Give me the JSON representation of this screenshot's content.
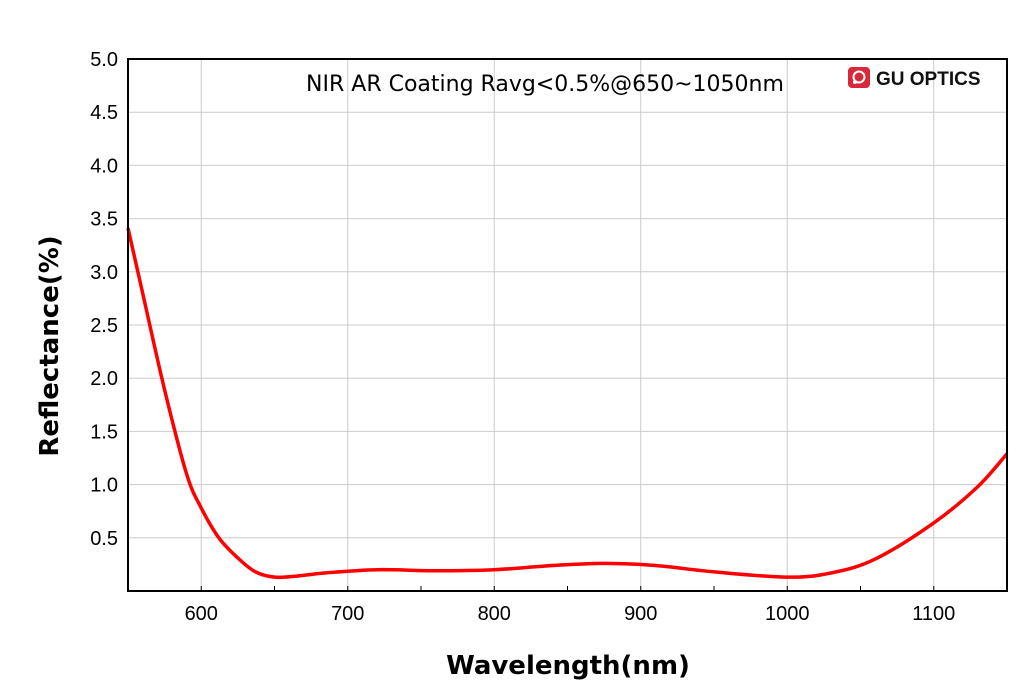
{
  "chart_data": {
    "type": "line",
    "title": "NIR AR Coating Ravg<0.5%@650~1050nm",
    "xlabel": "Wavelength(nm)",
    "ylabel": "Reflectance(%)",
    "xlim": [
      550,
      1150
    ],
    "ylim": [
      0,
      5.0
    ],
    "xticks": [
      "600",
      "700",
      "800",
      "900",
      "1000",
      "1100"
    ],
    "yticks": [
      "0.5",
      "1.0",
      "1.5",
      "2.0",
      "2.5",
      "3.0",
      "3.5",
      "4.0",
      "4.5",
      "5.0"
    ],
    "grid": true,
    "series": [
      {
        "name": "Reflectance",
        "color": "#ff0000",
        "x": [
          550,
          560,
          575,
          590,
          600,
          612,
          625,
          637,
          650,
          665,
          685,
          720,
          760,
          800,
          840,
          875,
          910,
          950,
          1000,
          1030,
          1060,
          1100,
          1130,
          1150
        ],
        "y": [
          3.41,
          2.8,
          1.89,
          1.1,
          0.78,
          0.5,
          0.31,
          0.18,
          0.13,
          0.14,
          0.17,
          0.2,
          0.19,
          0.2,
          0.24,
          0.26,
          0.24,
          0.18,
          0.13,
          0.17,
          0.3,
          0.64,
          0.98,
          1.29
        ]
      }
    ]
  },
  "logo": {
    "text": "GU OPTICS",
    "color": "#d9283a"
  }
}
